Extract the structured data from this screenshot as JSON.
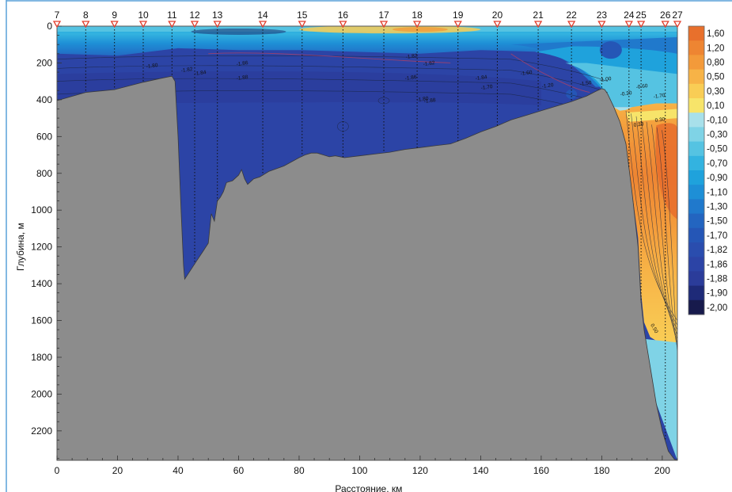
{
  "chart_data": {
    "type": "heatmap",
    "title": "",
    "xlabel": "Расстояние, км",
    "ylabel": "Глубина, м",
    "xlim": [
      0,
      205
    ],
    "ylim": [
      2360,
      0
    ],
    "x_ticks": [
      0,
      20,
      40,
      60,
      80,
      100,
      120,
      140,
      160,
      180,
      200
    ],
    "y_ticks": [
      0,
      200,
      400,
      600,
      800,
      1000,
      1200,
      1400,
      1600,
      1800,
      2000,
      2200
    ],
    "stations": [
      {
        "label": "7",
        "km": 0
      },
      {
        "label": "8",
        "km": 9.5
      },
      {
        "label": "9",
        "km": 19
      },
      {
        "label": "10",
        "km": 28.5
      },
      {
        "label": "11",
        "km": 38
      },
      {
        "label": "12",
        "km": 45.5
      },
      {
        "label": "13",
        "km": 53
      },
      {
        "label": "14",
        "km": 68
      },
      {
        "label": "15",
        "km": 81
      },
      {
        "label": "16",
        "km": 94.5
      },
      {
        "label": "17",
        "km": 108
      },
      {
        "label": "18",
        "km": 119
      },
      {
        "label": "19",
        "km": 132.5
      },
      {
        "label": "20",
        "km": 145.5
      },
      {
        "label": "21",
        "km": 159
      },
      {
        "label": "22",
        "km": 170
      },
      {
        "label": "23",
        "km": 180
      },
      {
        "label": "24",
        "km": 189
      },
      {
        "label": "25",
        "km": 193
      },
      {
        "label": "26",
        "km": 201
      },
      {
        "label": "27",
        "km": 205
      }
    ],
    "colorbar": {
      "levels": [
        "1,60",
        "1,20",
        "0,80",
        "0,50",
        "0,30",
        "0,10",
        "-0,10",
        "-0,30",
        "-0,50",
        "-0,70",
        "-0,90",
        "-1,10",
        "-1,30",
        "-1,50",
        "-1,70",
        "-1,82",
        "-1,86",
        "-1,88",
        "-1,90",
        "-2,00"
      ],
      "colors": [
        "#e8702c",
        "#ee8532",
        "#f39a3a",
        "#f7b347",
        "#f9cd55",
        "#f7e46a",
        "#a8e0ea",
        "#7fd3e6",
        "#55c3e2",
        "#33b3e0",
        "#1fa2dc",
        "#1e8fd6",
        "#2079cc",
        "#2365c0",
        "#2556b6",
        "#2a4dae",
        "#2c44a6",
        "#2b3c9a",
        "#1e2a78",
        "#171a4c"
      ]
    },
    "isoline_labels": [
      "-1.80",
      "-1.82",
      "-1.84",
      "-1.86",
      "-1.88",
      "-1.82",
      "-1.82",
      "-1.86",
      "-1.84",
      "-1.88",
      "-1.80",
      "-1.70",
      "-1.60",
      "-1.50",
      "-1.00",
      "-1.20",
      "-0.60",
      "-0.20",
      "-1.70",
      "0.20",
      "0.30",
      "0.50"
    ],
    "sections": {
      "bottom": [
        [
          0,
          405
        ],
        [
          9.5,
          360
        ],
        [
          19,
          345
        ],
        [
          28.5,
          305
        ],
        [
          34,
          285
        ],
        [
          37,
          275
        ],
        [
          38,
          272
        ],
        [
          39,
          300
        ],
        [
          40,
          600
        ],
        [
          41,
          1000
        ],
        [
          41.8,
          1300
        ],
        [
          42.2,
          1375
        ],
        [
          44,
          1330
        ],
        [
          46,
          1280
        ],
        [
          48,
          1230
        ],
        [
          50,
          1180
        ],
        [
          51,
          1020
        ],
        [
          52,
          1060
        ],
        [
          53,
          950
        ],
        [
          54,
          930
        ],
        [
          55,
          900
        ],
        [
          56,
          850
        ],
        [
          58,
          840
        ],
        [
          60,
          810
        ],
        [
          61,
          780
        ],
        [
          62,
          830
        ],
        [
          63,
          860
        ],
        [
          65,
          830
        ],
        [
          67,
          820
        ],
        [
          70,
          790
        ],
        [
          75,
          760
        ],
        [
          80,
          715
        ],
        [
          82,
          700
        ],
        [
          84,
          690
        ],
        [
          86,
          690
        ],
        [
          88,
          700
        ],
        [
          90,
          710
        ],
        [
          92,
          705
        ],
        [
          95,
          715
        ],
        [
          100,
          705
        ],
        [
          105,
          695
        ],
        [
          110,
          685
        ],
        [
          115,
          670
        ],
        [
          120,
          660
        ],
        [
          125,
          650
        ],
        [
          130,
          640
        ],
        [
          135,
          610
        ],
        [
          140,
          575
        ],
        [
          145,
          545
        ],
        [
          150,
          510
        ],
        [
          155,
          485
        ],
        [
          160,
          460
        ],
        [
          165,
          435
        ],
        [
          170,
          410
        ],
        [
          175,
          380
        ],
        [
          178,
          355
        ],
        [
          180,
          340
        ],
        [
          181,
          345
        ],
        [
          182,
          370
        ],
        [
          184,
          440
        ],
        [
          186,
          520
        ],
        [
          188,
          640
        ],
        [
          190,
          900
        ],
        [
          191,
          1050
        ],
        [
          192,
          1200
        ],
        [
          193,
          1500
        ],
        [
          194,
          1650
        ],
        [
          196,
          1850
        ],
        [
          198,
          2050
        ],
        [
          200,
          2200
        ],
        [
          202,
          2310
        ],
        [
          204,
          2355
        ],
        [
          205,
          2360
        ]
      ],
      "warm_layer_top": [
        [
          184,
          440
        ],
        [
          186,
          460
        ],
        [
          188,
          455
        ],
        [
          190,
          440
        ],
        [
          194,
          430
        ],
        [
          198,
          420
        ],
        [
          205,
          420
        ]
      ],
      "warm_layer_bottom": [
        [
          190,
          900
        ],
        [
          192,
          1150
        ],
        [
          193,
          1450
        ],
        [
          194,
          1610
        ],
        [
          196,
          1690
        ],
        [
          198,
          1710
        ],
        [
          205,
          1720
        ]
      ],
      "surface_layer_depth": [
        [
          0,
          150
        ],
        [
          20,
          160
        ],
        [
          40,
          120
        ],
        [
          60,
          130
        ],
        [
          80,
          130
        ],
        [
          100,
          140
        ],
        [
          120,
          150
        ],
        [
          140,
          130
        ],
        [
          160,
          140
        ],
        [
          180,
          150
        ],
        [
          205,
          170
        ]
      ]
    }
  }
}
